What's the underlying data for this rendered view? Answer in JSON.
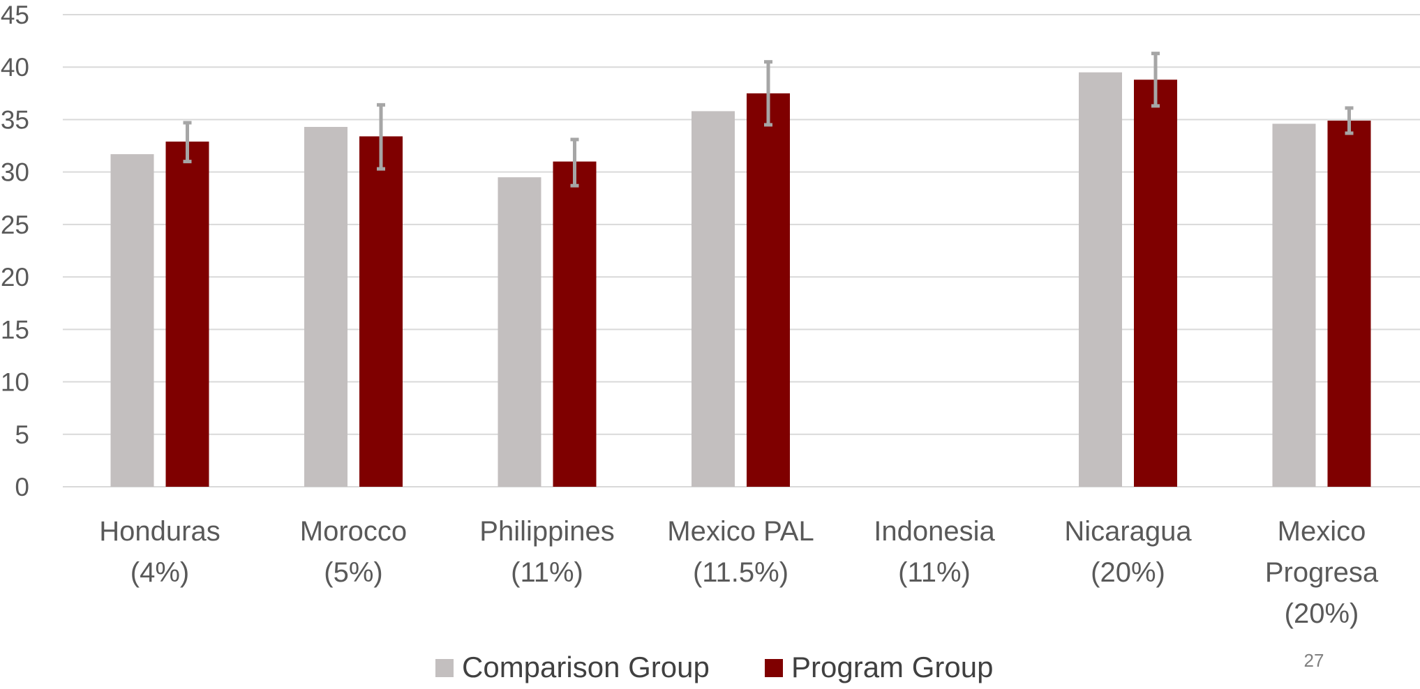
{
  "chart_data": {
    "type": "bar",
    "title": "",
    "xlabel": "",
    "ylabel": "",
    "ylim": [
      0,
      45
    ],
    "yticks": [
      0,
      5,
      10,
      15,
      20,
      25,
      30,
      35,
      40,
      45
    ],
    "grid": true,
    "legend_position": "bottom",
    "categories": [
      [
        "Honduras",
        "(4%)"
      ],
      [
        "Morocco",
        "(5%)"
      ],
      [
        "Philippines",
        "(11%)"
      ],
      [
        "Mexico PAL",
        "(11.5%)"
      ],
      [
        "Indonesia",
        "(11%)"
      ],
      [
        "Nicaragua",
        "(20%)"
      ],
      [
        "Mexico",
        "Progresa",
        "(20%)"
      ]
    ],
    "series": [
      {
        "name": "Comparison Group",
        "color": "#c3bfbf",
        "values": [
          31.7,
          34.3,
          29.5,
          35.8,
          null,
          39.5,
          34.6
        ]
      },
      {
        "name": "Program Group",
        "color": "#7f0000",
        "values": [
          32.9,
          33.4,
          31.0,
          37.5,
          null,
          38.8,
          34.9
        ],
        "error_low": [
          31.0,
          30.3,
          28.7,
          34.5,
          null,
          36.3,
          33.7
        ],
        "error_high": [
          34.7,
          36.4,
          33.1,
          40.5,
          null,
          41.3,
          36.1
        ]
      }
    ],
    "errorbar_color": "#a6a6a6",
    "gridline_color": "#d9d9d9"
  },
  "page_number": "27"
}
